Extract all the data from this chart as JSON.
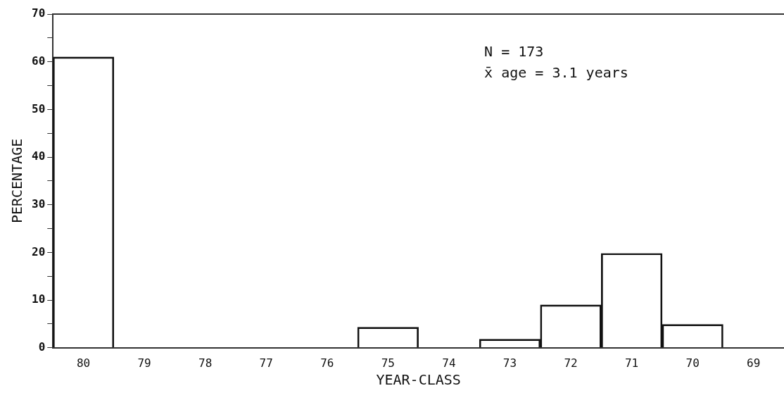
{
  "chart_data": {
    "type": "bar",
    "xlabel": "YEAR-CLASS",
    "ylabel": "PERCENTAGE",
    "categories": [
      "80",
      "79",
      "78",
      "77",
      "76",
      "75",
      "74",
      "73",
      "72",
      "71",
      "70",
      "69"
    ],
    "values": [
      61,
      0,
      0,
      0,
      0,
      4.3,
      0,
      1.8,
      9,
      19.8,
      4.9,
      0
    ],
    "color": "#111111",
    "ylim": [
      0,
      70
    ],
    "yticks": [
      0,
      {
        "value": 5,
        "label": null
      },
      10,
      {
        "value": 15,
        "label": null
      },
      20,
      {
        "value": 25,
        "label": null
      },
      30,
      {
        "value": 35,
        "label": null
      },
      40,
      {
        "value": 45,
        "label": null
      },
      50,
      {
        "value": 55,
        "label": null
      },
      60,
      {
        "value": 65,
        "label": null
      },
      70
    ],
    "grid": false,
    "legend": false,
    "annotations": [
      "N = 173",
      "x̄ age = 3.1 years"
    ]
  }
}
